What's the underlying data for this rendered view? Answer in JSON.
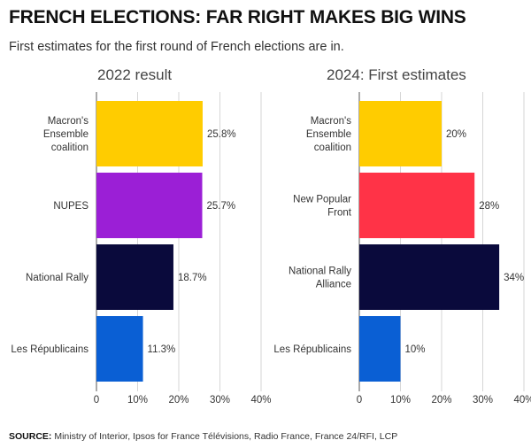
{
  "header": {
    "title": "FRENCH ELECTIONS: FAR RIGHT MAKES BIG WINS",
    "subtitle": "First estimates for the first round of French elections are in."
  },
  "footer": {
    "source_label": "SOURCE:",
    "source_text": "Ministry of Interior, Ipsos for France Télévisions, Radio France, France 24/RFI, LCP"
  },
  "chart_data": [
    {
      "type": "bar",
      "orientation": "horizontal",
      "title": "2022 result",
      "categories": [
        [
          "Macron's",
          "Ensemble",
          "coalition"
        ],
        [
          "NUPES"
        ],
        [
          "National Rally"
        ],
        [
          "Les Républicains"
        ]
      ],
      "values": [
        25.8,
        25.7,
        18.7,
        11.3
      ],
      "value_labels": [
        "25.8%",
        "25.7%",
        "18.7%",
        "11.3%"
      ],
      "colors": [
        "#ffcc00",
        "#9b1fd6",
        "#0a0a3c",
        "#0a5fd4"
      ],
      "xlim": [
        0,
        40
      ],
      "ticks": [
        0,
        10,
        20,
        30,
        40
      ],
      "tick_labels": [
        "0",
        "10%",
        "20%",
        "30%",
        "40%"
      ],
      "grid": true
    },
    {
      "type": "bar",
      "orientation": "horizontal",
      "title": "2024: First estimates",
      "categories": [
        [
          "Macron's",
          "Ensemble",
          "coalition"
        ],
        [
          "New Popular",
          "Front"
        ],
        [
          "National Rally",
          "Alliance"
        ],
        [
          "Les Républicains"
        ]
      ],
      "values": [
        20,
        28,
        34,
        10
      ],
      "value_labels": [
        "20%",
        "28%",
        "34%",
        "10%"
      ],
      "colors": [
        "#ffcc00",
        "#ff3347",
        "#0a0a3c",
        "#0a5fd4"
      ],
      "xlim": [
        0,
        40
      ],
      "ticks": [
        0,
        10,
        20,
        30,
        40
      ],
      "tick_labels": [
        "0",
        "10%",
        "20%",
        "30%",
        "40%"
      ],
      "grid": true
    }
  ]
}
